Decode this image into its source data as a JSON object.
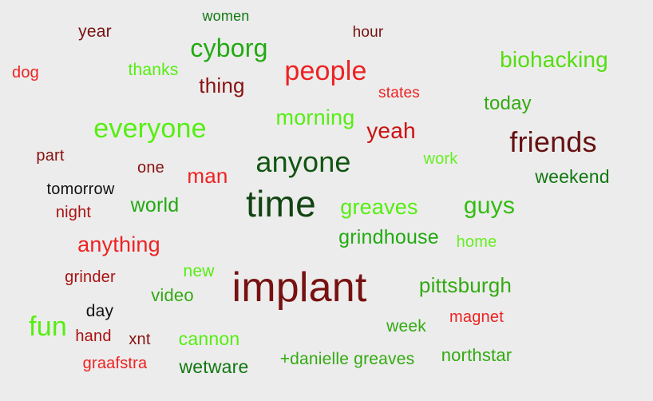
{
  "palette": {
    "background": "#ececec",
    "dark_red": "#7a0f0f",
    "red": "#ee2222",
    "light_green": "#55ee11",
    "green": "#22aa11",
    "dark_green": "#116611",
    "black": "#111111"
  },
  "words": [
    {
      "text": "women",
      "color": "#117711"
    },
    {
      "text": "year",
      "color": "#771111"
    },
    {
      "text": "hour",
      "color": "#771111"
    },
    {
      "text": "cyborg",
      "color": "#22aa11"
    },
    {
      "text": "dog",
      "color": "#ee2222"
    },
    {
      "text": "thanks",
      "color": "#55ee11"
    },
    {
      "text": "people",
      "color": "#ee2222"
    },
    {
      "text": "biohacking",
      "color": "#55dd11"
    },
    {
      "text": "thing",
      "color": "#881111"
    },
    {
      "text": "states",
      "color": "#ee2222"
    },
    {
      "text": "today",
      "color": "#33aa11"
    },
    {
      "text": "morning",
      "color": "#55ee11"
    },
    {
      "text": "everyone",
      "color": "#55ee11"
    },
    {
      "text": "yeah",
      "color": "#cc1111"
    },
    {
      "text": "friends",
      "color": "#661111"
    },
    {
      "text": "part",
      "color": "#881111"
    },
    {
      "text": "anyone",
      "color": "#115511"
    },
    {
      "text": "work",
      "color": "#66ee22"
    },
    {
      "text": "one",
      "color": "#881111"
    },
    {
      "text": "man",
      "color": "#ee2222"
    },
    {
      "text": "weekend",
      "color": "#117711"
    },
    {
      "text": "tomorrow",
      "color": "#111111"
    },
    {
      "text": "time",
      "color": "#114411"
    },
    {
      "text": "world",
      "color": "#22aa11"
    },
    {
      "text": "greaves",
      "color": "#55ee11"
    },
    {
      "text": "guys",
      "color": "#33bb11"
    },
    {
      "text": "night",
      "color": "#aa1111"
    },
    {
      "text": "grindhouse",
      "color": "#22aa11"
    },
    {
      "text": "home",
      "color": "#66ee22"
    },
    {
      "text": "anything",
      "color": "#ee2222"
    },
    {
      "text": "new",
      "color": "#55ee11"
    },
    {
      "text": "implant",
      "color": "#771111"
    },
    {
      "text": "grinder",
      "color": "#aa1111"
    },
    {
      "text": "pittsburgh",
      "color": "#33aa11"
    },
    {
      "text": "video",
      "color": "#33aa11"
    },
    {
      "text": "day",
      "color": "#111111"
    },
    {
      "text": "fun",
      "color": "#55ee11"
    },
    {
      "text": "magnet",
      "color": "#ee2222"
    },
    {
      "text": "week",
      "color": "#33aa11"
    },
    {
      "text": "hand",
      "color": "#aa1111"
    },
    {
      "text": "xnt",
      "color": "#881111"
    },
    {
      "text": "cannon",
      "color": "#55ee11"
    },
    {
      "text": "northstar",
      "color": "#33aa11"
    },
    {
      "text": "graafstra",
      "color": "#ee2222"
    },
    {
      "text": "wetware",
      "color": "#117711"
    },
    {
      "text": "+danielle greaves",
      "color": "#33aa11"
    }
  ]
}
